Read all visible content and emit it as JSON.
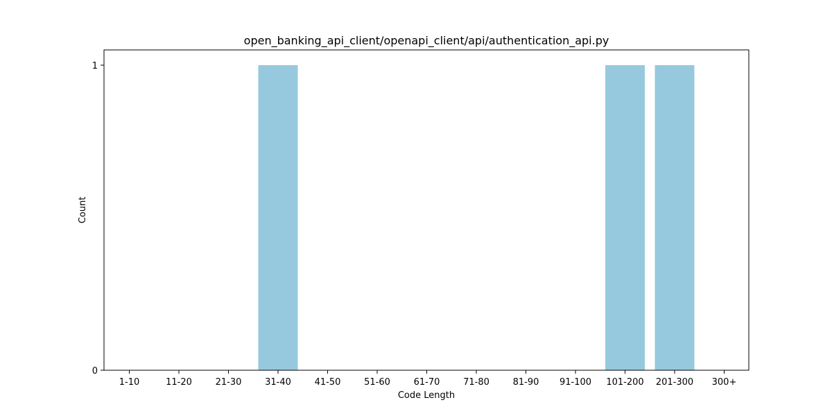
{
  "chart_data": {
    "type": "bar",
    "title": "open_banking_api_client/openapi_client/api/authentication_api.py",
    "xlabel": "Code Length",
    "ylabel": "Count",
    "categories": [
      "1-10",
      "11-20",
      "21-30",
      "31-40",
      "41-50",
      "51-60",
      "61-70",
      "71-80",
      "81-90",
      "91-100",
      "101-200",
      "201-300",
      "300+"
    ],
    "values": [
      0,
      0,
      0,
      1,
      0,
      0,
      0,
      0,
      0,
      0,
      1,
      1,
      0
    ],
    "yticks": [
      "0",
      "1"
    ],
    "ylim": [
      0,
      1.05
    ],
    "bar_color": "#96c9de",
    "grid": false,
    "legend": "none"
  }
}
